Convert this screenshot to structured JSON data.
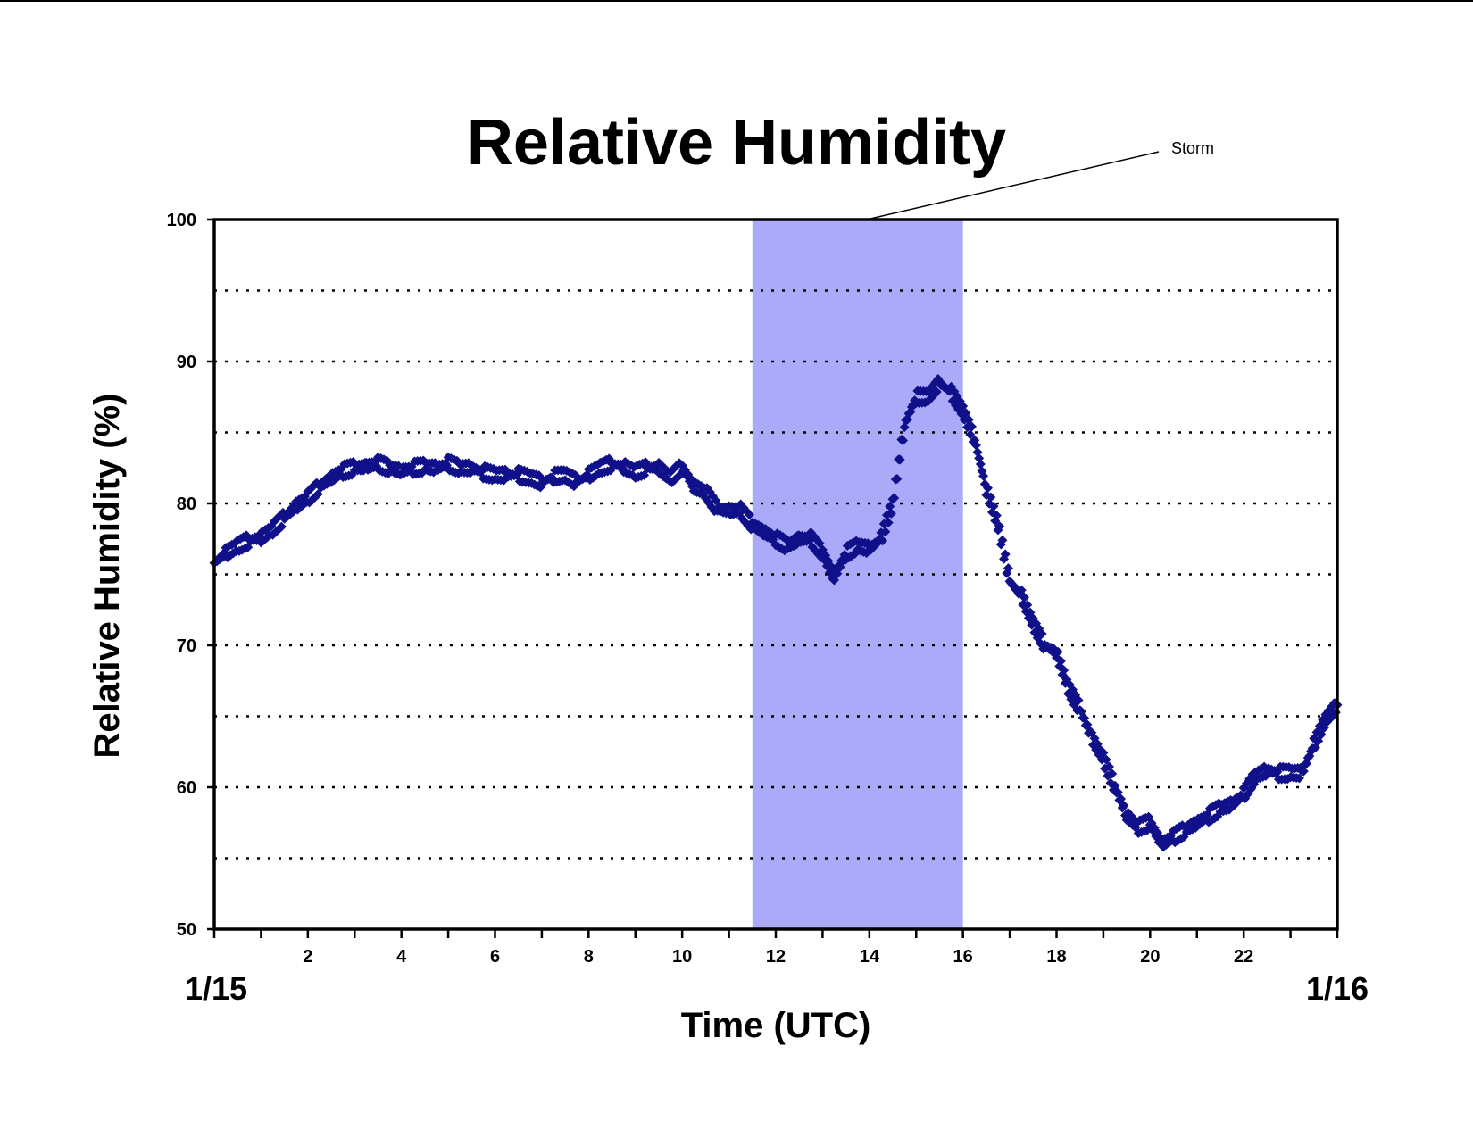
{
  "chart_data": {
    "type": "scatter",
    "title": "Relative Humidity",
    "xlabel": "Time (UTC)",
    "ylabel": "Relative Humidity (%)",
    "x_start_label": "1/15",
    "x_end_label": "1/16",
    "xlim": [
      0,
      24
    ],
    "ylim": [
      50,
      100
    ],
    "x_ticks": [
      2,
      4,
      6,
      8,
      10,
      12,
      14,
      16,
      18,
      20,
      22
    ],
    "y_ticks": [
      50,
      60,
      70,
      80,
      90,
      100
    ],
    "grid": "horizontal dotted every 5",
    "legend": "none",
    "marker": "diamond",
    "colors": {
      "series": "#10108a",
      "storm_band": "#aaaaf8",
      "axes": "#000000"
    },
    "storm_band": {
      "label": "Storm",
      "x_start": 11.5,
      "x_end": 16
    },
    "series": [
      {
        "x": [
          0,
          0.25,
          0.5,
          0.75,
          1,
          1.25,
          1.5,
          1.75,
          2,
          2.25,
          2.5,
          2.75,
          3,
          3.25,
          3.5,
          3.75,
          4,
          4.25,
          4.5,
          4.75,
          5,
          5.25,
          5.5,
          5.75,
          6,
          6.25,
          6.5,
          6.75,
          7,
          7.25,
          7.5,
          7.75,
          8,
          8.25,
          8.5,
          8.75,
          9,
          9.25,
          9.5,
          9.75,
          10,
          10.25,
          10.5,
          10.75,
          11,
          11.25,
          11.5,
          11.75,
          12,
          12.25,
          12.5,
          12.75,
          13,
          13.25,
          13.5,
          13.75,
          14,
          14.25,
          14.5,
          14.75,
          15,
          15.25,
          15.5,
          15.75,
          16,
          16.25,
          16.5,
          16.75,
          17,
          17.25,
          17.5,
          17.75,
          18,
          18.25,
          18.5,
          18.75,
          19,
          19.25,
          19.5,
          19.75,
          20,
          20.25,
          20.5,
          20.75,
          21,
          21.25,
          21.5,
          21.75,
          22,
          22.25,
          22.5,
          22.75,
          23,
          23.25,
          23.5,
          23.75,
          24
        ],
        "y": [
          75.8,
          76.5,
          77,
          77.4,
          77.6,
          78.2,
          79,
          79.8,
          80.4,
          81.2,
          81.8,
          82.3,
          82.5,
          82.6,
          82.8,
          82.5,
          82.3,
          82.5,
          82.6,
          82.5,
          82.8,
          82.5,
          82.5,
          82.2,
          82,
          82,
          82,
          81.8,
          81.5,
          81.9,
          82,
          81.5,
          82,
          82.5,
          82.8,
          82.6,
          82.2,
          82.5,
          82.5,
          81.8,
          82.6,
          81.2,
          80.8,
          79.6,
          79.5,
          79.5,
          78.5,
          78,
          77.5,
          77,
          77.5,
          77.5,
          76.5,
          74.8,
          76.5,
          77,
          76.8,
          77.5,
          80,
          85.5,
          87.5,
          87.5,
          88.5,
          87.8,
          86.5,
          84.5,
          81,
          78.5,
          74.5,
          73.5,
          71.5,
          70,
          69.5,
          67,
          65.5,
          63.5,
          62,
          60,
          58,
          57.2,
          57.5,
          56,
          56.5,
          57,
          57.5,
          58,
          58.5,
          58.8,
          59.5,
          60.8,
          61.2,
          61,
          61,
          61,
          63,
          64.8,
          65.8
        ]
      }
    ]
  }
}
